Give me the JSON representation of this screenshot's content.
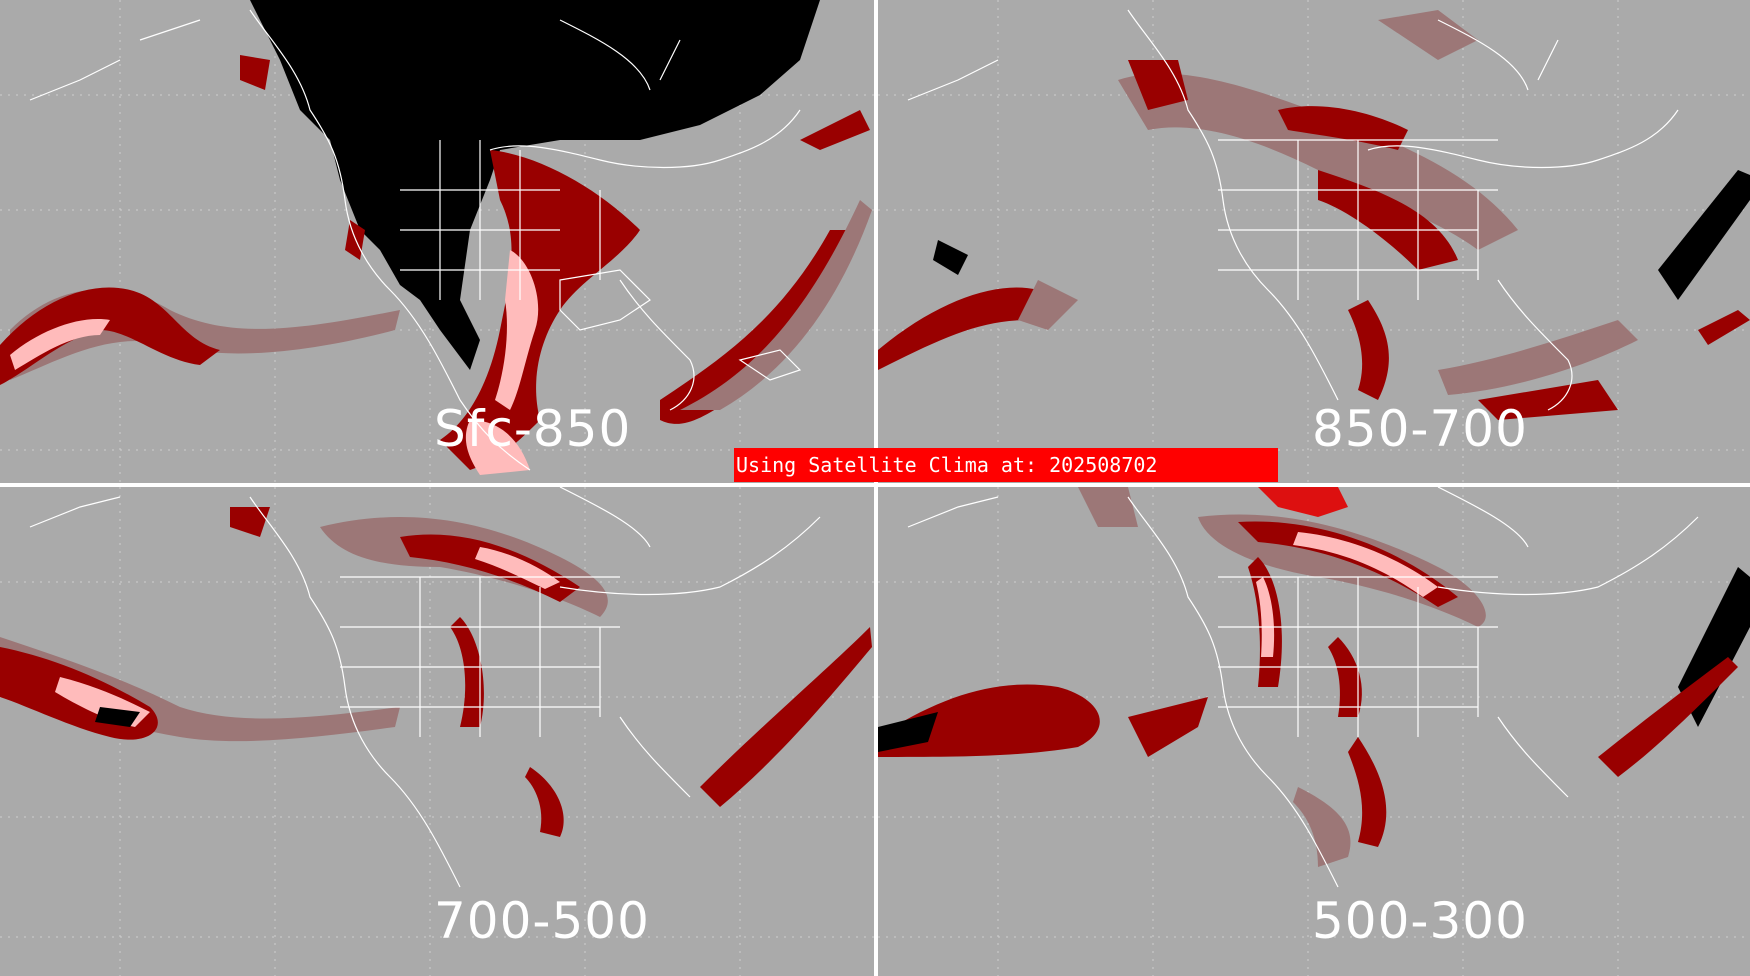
{
  "panels": [
    {
      "id": "sfc-850",
      "label": "Sfc-850"
    },
    {
      "id": "850-700",
      "label": "850-700"
    },
    {
      "id": "700-500",
      "label": "700-500"
    },
    {
      "id": "500-300",
      "label": "500-300"
    }
  ],
  "banner": {
    "text": "Using Satellite Clima at: 202508702"
  },
  "colors": {
    "background": "#aaaaaa",
    "coastline": "#ffffff",
    "gridline": "#cfcfcf",
    "pale_red": "#9c7777",
    "dark_red": "#990000",
    "red": "#dd1010",
    "pink": "#ffbbbb",
    "white": "#ffffff",
    "black": "#000000",
    "banner": "#ff0000"
  }
}
